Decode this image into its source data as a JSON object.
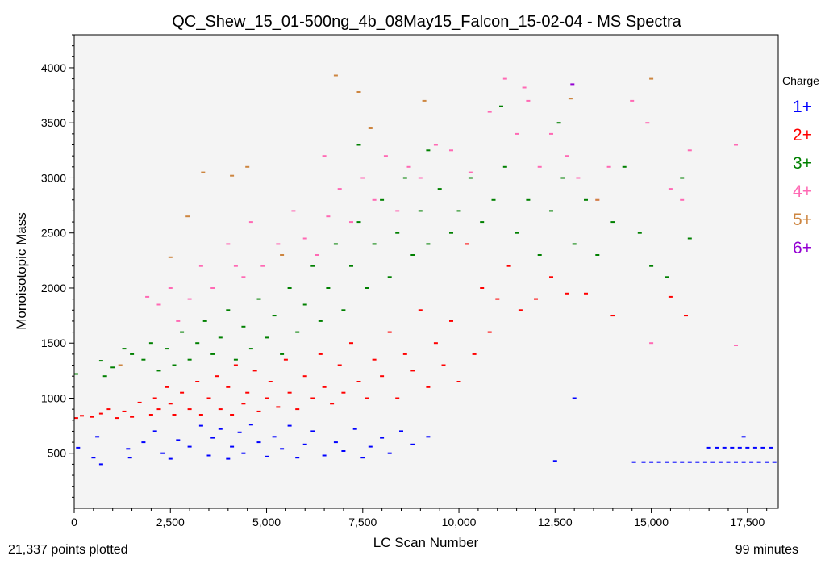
{
  "chart_data": {
    "type": "scatter",
    "title": "QC_Shew_15_01-500ng_4b_08May15_Falcon_15-02-04 - MS Spectra",
    "xlabel": "LC Scan Number",
    "ylabel": "Monoisotopic Mass",
    "xlim": [
      0,
      18300
    ],
    "ylim": [
      0,
      4300
    ],
    "x_ticks": [
      0,
      2500,
      5000,
      7500,
      10000,
      12500,
      15000,
      17500
    ],
    "x_tick_labels": [
      "0",
      "2,500",
      "5,000",
      "7,500",
      "10,000",
      "12,500",
      "15,000",
      "17,500"
    ],
    "y_ticks": [
      500,
      1000,
      1500,
      2000,
      2500,
      3000,
      3500,
      4000
    ],
    "y_tick_labels": [
      "500",
      "1000",
      "1500",
      "2000",
      "2500",
      "3000",
      "3500",
      "4000"
    ],
    "grid": false,
    "background": "#f4f4f4",
    "legend": {
      "title": "Charge",
      "placement": "right",
      "entries": [
        {
          "label": "1+",
          "color": "#0000ff"
        },
        {
          "label": "2+",
          "color": "#ff0000"
        },
        {
          "label": "3+",
          "color": "#008000"
        },
        {
          "label": "4+",
          "color": "#ff69b4"
        },
        {
          "label": "5+",
          "color": "#cd853f"
        },
        {
          "label": "6+",
          "color": "#9400d3"
        }
      ]
    },
    "series": [
      {
        "name": "1+",
        "color": "#0000ff",
        "points": [
          [
            100,
            550
          ],
          [
            500,
            460
          ],
          [
            600,
            650
          ],
          [
            700,
            400
          ],
          [
            1400,
            540
          ],
          [
            1450,
            460
          ],
          [
            1800,
            600
          ],
          [
            2100,
            700
          ],
          [
            2300,
            500
          ],
          [
            2500,
            450
          ],
          [
            2700,
            620
          ],
          [
            3000,
            560
          ],
          [
            3300,
            750
          ],
          [
            3500,
            480
          ],
          [
            3600,
            640
          ],
          [
            3800,
            720
          ],
          [
            4000,
            450
          ],
          [
            4100,
            560
          ],
          [
            4300,
            690
          ],
          [
            4400,
            500
          ],
          [
            4600,
            760
          ],
          [
            4800,
            600
          ],
          [
            5000,
            470
          ],
          [
            5200,
            650
          ],
          [
            5400,
            540
          ],
          [
            5600,
            750
          ],
          [
            5800,
            460
          ],
          [
            6000,
            580
          ],
          [
            6200,
            700
          ],
          [
            6500,
            480
          ],
          [
            6800,
            600
          ],
          [
            7000,
            520
          ],
          [
            7300,
            720
          ],
          [
            7500,
            460
          ],
          [
            7700,
            560
          ],
          [
            8000,
            640
          ],
          [
            8200,
            500
          ],
          [
            8500,
            700
          ],
          [
            8800,
            580
          ],
          [
            9200,
            650
          ],
          [
            12500,
            430
          ],
          [
            13000,
            1000
          ],
          [
            14550,
            420
          ],
          [
            14800,
            420
          ],
          [
            15000,
            420
          ],
          [
            15200,
            420
          ],
          [
            15400,
            420
          ],
          [
            15600,
            420
          ],
          [
            15800,
            420
          ],
          [
            16000,
            420
          ],
          [
            16200,
            420
          ],
          [
            16400,
            420
          ],
          [
            16600,
            420
          ],
          [
            16800,
            420
          ],
          [
            17000,
            420
          ],
          [
            17200,
            420
          ],
          [
            17400,
            420
          ],
          [
            17600,
            420
          ],
          [
            17800,
            420
          ],
          [
            18000,
            420
          ],
          [
            18200,
            420
          ],
          [
            16500,
            550
          ],
          [
            16700,
            550
          ],
          [
            16900,
            550
          ],
          [
            17100,
            550
          ],
          [
            17300,
            550
          ],
          [
            17500,
            550
          ],
          [
            17700,
            550
          ],
          [
            17900,
            550
          ],
          [
            18100,
            550
          ],
          [
            17400,
            650
          ]
        ]
      },
      {
        "name": "2+",
        "color": "#ff0000",
        "points": [
          [
            50,
            820
          ],
          [
            200,
            840
          ],
          [
            450,
            830
          ],
          [
            700,
            860
          ],
          [
            900,
            900
          ],
          [
            1100,
            820
          ],
          [
            1300,
            880
          ],
          [
            1500,
            830
          ],
          [
            1700,
            960
          ],
          [
            2000,
            850
          ],
          [
            2100,
            1000
          ],
          [
            2200,
            900
          ],
          [
            2400,
            1100
          ],
          [
            2500,
            950
          ],
          [
            2600,
            850
          ],
          [
            2800,
            1050
          ],
          [
            3000,
            900
          ],
          [
            3200,
            1150
          ],
          [
            3300,
            850
          ],
          [
            3500,
            1000
          ],
          [
            3700,
            1200
          ],
          [
            3800,
            900
          ],
          [
            4000,
            1100
          ],
          [
            4100,
            850
          ],
          [
            4200,
            1300
          ],
          [
            4400,
            950
          ],
          [
            4500,
            1050
          ],
          [
            4700,
            1250
          ],
          [
            4800,
            880
          ],
          [
            5000,
            1000
          ],
          [
            5100,
            1150
          ],
          [
            5300,
            920
          ],
          [
            5500,
            1350
          ],
          [
            5600,
            1050
          ],
          [
            5800,
            900
          ],
          [
            6000,
            1200
          ],
          [
            6200,
            1000
          ],
          [
            6400,
            1400
          ],
          [
            6500,
            1100
          ],
          [
            6700,
            950
          ],
          [
            6900,
            1300
          ],
          [
            7000,
            1050
          ],
          [
            7200,
            1500
          ],
          [
            7400,
            1150
          ],
          [
            7600,
            1000
          ],
          [
            7800,
            1350
          ],
          [
            8000,
            1200
          ],
          [
            8200,
            1600
          ],
          [
            8400,
            1000
          ],
          [
            8600,
            1400
          ],
          [
            8800,
            1250
          ],
          [
            9000,
            1800
          ],
          [
            9200,
            1100
          ],
          [
            9400,
            1500
          ],
          [
            9600,
            1300
          ],
          [
            9800,
            1700
          ],
          [
            10000,
            1150
          ],
          [
            10200,
            2400
          ],
          [
            10400,
            1400
          ],
          [
            10600,
            2000
          ],
          [
            10800,
            1600
          ],
          [
            11000,
            1900
          ],
          [
            11300,
            2200
          ],
          [
            11600,
            1800
          ],
          [
            12000,
            1900
          ],
          [
            12400,
            2100
          ],
          [
            12800,
            1950
          ],
          [
            13300,
            1950
          ],
          [
            14000,
            1750
          ],
          [
            15500,
            1920
          ],
          [
            15900,
            1750
          ]
        ]
      },
      {
        "name": "3+",
        "color": "#008000",
        "points": [
          [
            50,
            1220
          ],
          [
            700,
            1340
          ],
          [
            800,
            1200
          ],
          [
            1000,
            1280
          ],
          [
            1300,
            1450
          ],
          [
            1500,
            1400
          ],
          [
            1800,
            1350
          ],
          [
            2000,
            1500
          ],
          [
            2200,
            1250
          ],
          [
            2400,
            1450
          ],
          [
            2600,
            1300
          ],
          [
            2800,
            1600
          ],
          [
            3000,
            1350
          ],
          [
            3200,
            1500
          ],
          [
            3400,
            1700
          ],
          [
            3600,
            1400
          ],
          [
            3800,
            1550
          ],
          [
            4000,
            1800
          ],
          [
            4200,
            1350
          ],
          [
            4400,
            1650
          ],
          [
            4600,
            1450
          ],
          [
            4800,
            1900
          ],
          [
            5000,
            1550
          ],
          [
            5200,
            1750
          ],
          [
            5400,
            1400
          ],
          [
            5600,
            2000
          ],
          [
            5800,
            1600
          ],
          [
            6000,
            1850
          ],
          [
            6200,
            2200
          ],
          [
            6400,
            1700
          ],
          [
            6600,
            2000
          ],
          [
            6800,
            2400
          ],
          [
            7000,
            1800
          ],
          [
            7200,
            2200
          ],
          [
            7400,
            2600
          ],
          [
            7600,
            2000
          ],
          [
            7800,
            2400
          ],
          [
            8000,
            2800
          ],
          [
            8200,
            2100
          ],
          [
            8400,
            2500
          ],
          [
            8600,
            3000
          ],
          [
            8800,
            2300
          ],
          [
            9000,
            2700
          ],
          [
            9200,
            2400
          ],
          [
            9500,
            2900
          ],
          [
            9800,
            2500
          ],
          [
            10000,
            2700
          ],
          [
            10300,
            3000
          ],
          [
            10600,
            2600
          ],
          [
            10900,
            2800
          ],
          [
            11200,
            3100
          ],
          [
            11500,
            2500
          ],
          [
            11800,
            2800
          ],
          [
            12100,
            2300
          ],
          [
            12400,
            2700
          ],
          [
            12700,
            3000
          ],
          [
            13000,
            2400
          ],
          [
            13300,
            2800
          ],
          [
            13600,
            2300
          ],
          [
            14000,
            2600
          ],
          [
            14300,
            3100
          ],
          [
            14700,
            2500
          ],
          [
            15000,
            2200
          ],
          [
            15400,
            2100
          ],
          [
            15800,
            3000
          ],
          [
            16000,
            2450
          ],
          [
            11100,
            3650
          ],
          [
            12600,
            3500
          ],
          [
            9200,
            3250
          ],
          [
            7400,
            3300
          ]
        ]
      },
      {
        "name": "4+",
        "color": "#ff69b4",
        "points": [
          [
            1900,
            1920
          ],
          [
            2200,
            1850
          ],
          [
            2500,
            2000
          ],
          [
            2700,
            1700
          ],
          [
            3000,
            1900
          ],
          [
            3300,
            2200
          ],
          [
            3600,
            2000
          ],
          [
            4000,
            2400
          ],
          [
            4200,
            2200
          ],
          [
            4400,
            2100
          ],
          [
            4600,
            2600
          ],
          [
            4900,
            2200
          ],
          [
            5300,
            2400
          ],
          [
            5700,
            2700
          ],
          [
            6000,
            2450
          ],
          [
            6300,
            2300
          ],
          [
            6600,
            2650
          ],
          [
            6900,
            2900
          ],
          [
            7200,
            2600
          ],
          [
            7500,
            3000
          ],
          [
            7800,
            2800
          ],
          [
            8100,
            3200
          ],
          [
            8400,
            2700
          ],
          [
            8700,
            3100
          ],
          [
            9000,
            3000
          ],
          [
            9400,
            3300
          ],
          [
            9800,
            3250
          ],
          [
            10300,
            3050
          ],
          [
            10800,
            3600
          ],
          [
            11200,
            3900
          ],
          [
            11500,
            3400
          ],
          [
            11800,
            3700
          ],
          [
            12100,
            3100
          ],
          [
            12400,
            3400
          ],
          [
            12800,
            3200
          ],
          [
            13100,
            3000
          ],
          [
            13600,
            2800
          ],
          [
            13900,
            3100
          ],
          [
            14500,
            3700
          ],
          [
            14900,
            3500
          ],
          [
            15500,
            2900
          ],
          [
            15800,
            2800
          ],
          [
            16000,
            3250
          ],
          [
            17200,
            3300
          ],
          [
            17200,
            1480
          ],
          [
            15000,
            1500
          ],
          [
            11700,
            3820
          ],
          [
            6500,
            3200
          ]
        ]
      },
      {
        "name": "5+",
        "color": "#cd853f",
        "points": [
          [
            1200,
            1300
          ],
          [
            2500,
            2280
          ],
          [
            2950,
            2650
          ],
          [
            3350,
            3050
          ],
          [
            4100,
            3020
          ],
          [
            4500,
            3100
          ],
          [
            6800,
            3930
          ],
          [
            7400,
            3780
          ],
          [
            7700,
            3450
          ],
          [
            9100,
            3700
          ],
          [
            12900,
            3720
          ],
          [
            15000,
            3900
          ],
          [
            13600,
            2800
          ],
          [
            5400,
            2300
          ]
        ]
      },
      {
        "name": "6+",
        "color": "#9400d3",
        "points": [
          [
            12950,
            3850
          ]
        ]
      }
    ]
  },
  "footer": {
    "points_plotted": "21,337 points plotted",
    "duration": "99 minutes"
  }
}
